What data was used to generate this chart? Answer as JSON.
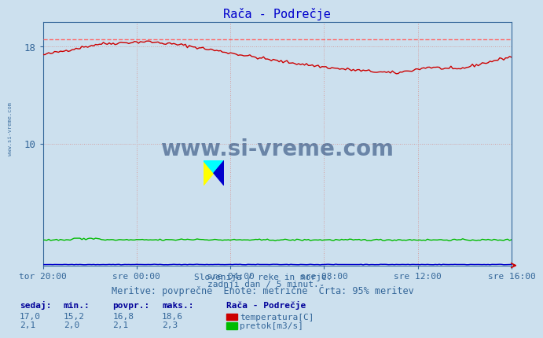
{
  "title": "Rača - Podrečje",
  "fig_bg_color": "#cce0ee",
  "plot_bg_color": "#cce0ee",
  "temp_color": "#cc0000",
  "pretok_color": "#00bb00",
  "visina_color": "#0000cc",
  "dashed_line_color": "#ff6666",
  "dashed_line_value": 18.6,
  "ylim": [
    0,
    20
  ],
  "ytick_vals": [
    10,
    18
  ],
  "xlabel_ticks": [
    "tor 20:00",
    "sre 00:00",
    "sre 04:00",
    "sre 08:00",
    "sre 12:00",
    "sre 16:00"
  ],
  "footer_line1": "Slovenija / reke in morje.",
  "footer_line2": "zadnji dan / 5 minut.",
  "footer_line3": "Meritve: povprečne  Enote: metrične  Črta: 95% meritev",
  "watermark": "www.si-vreme.com",
  "sidebar_text": "www.si-vreme.com",
  "table_headers": [
    "sedaj:",
    "min.:",
    "povpr.:",
    "maks.:"
  ],
  "table_row1": [
    "17,0",
    "15,2",
    "16,8",
    "18,6"
  ],
  "table_row2": [
    "2,1",
    "2,0",
    "2,1",
    "2,3"
  ],
  "legend_title": "Rača - Podrečje",
  "legend_items": [
    "temperatura[C]",
    "pretok[m3/s]"
  ],
  "legend_colors": [
    "#cc0000",
    "#00bb00"
  ],
  "tick_color": "#336699",
  "title_color": "#0000cc",
  "footer_color": "#336699",
  "table_header_color": "#000099",
  "table_val_color": "#336699"
}
